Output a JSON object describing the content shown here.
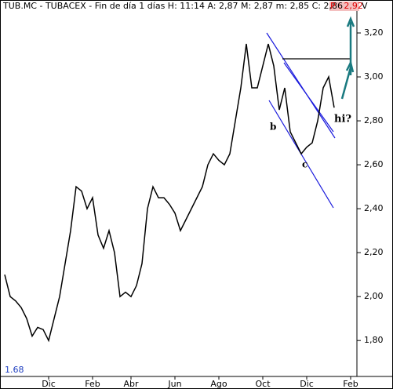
{
  "chart_data": {
    "type": "line",
    "title": "TUB.MC - TUBACEX - Fin de día 1 días H: 11:14 A: 2,87 M: 2,87 m: 2,85 C: 2,86",
    "title_highlight": "P : 2,92",
    "title_tail": "V",
    "corner_label": "1.68",
    "annotations": [
      "b",
      "c",
      "hi?"
    ],
    "categories": [
      null,
      null,
      null,
      null,
      null,
      null,
      null,
      null,
      "Dic",
      null,
      null,
      null,
      null,
      null,
      null,
      null,
      "Feb",
      null,
      null,
      null,
      null,
      null,
      null,
      "Abr",
      null,
      null,
      null,
      null,
      null,
      null,
      null,
      "Jun",
      null,
      null,
      null,
      null,
      null,
      null,
      null,
      "Ago",
      null,
      null,
      null,
      null,
      null,
      null,
      null,
      "Oct",
      null,
      null,
      null,
      null,
      null,
      null,
      null,
      "Dic",
      null,
      null,
      null,
      null,
      null,
      null,
      null,
      "Feb",
      null,
      null
    ],
    "series": [
      {
        "name": "TUB.MC",
        "color": "#000000",
        "values": [
          2.1,
          2.0,
          1.98,
          1.95,
          1.9,
          1.82,
          1.86,
          1.85,
          1.8,
          1.9,
          2.0,
          2.15,
          2.3,
          2.5,
          2.48,
          2.4,
          2.45,
          2.28,
          2.22,
          2.3,
          2.2,
          2.0,
          2.02,
          2.0,
          2.05,
          2.15,
          2.4,
          2.5,
          2.45,
          2.45,
          2.42,
          2.38,
          2.3,
          2.35,
          2.4,
          2.45,
          2.5,
          2.6,
          2.65,
          2.62,
          2.6,
          2.65,
          2.8,
          2.95,
          3.15,
          2.95,
          2.95,
          3.05,
          3.15,
          3.05,
          2.85,
          2.95,
          2.75,
          2.7,
          2.65,
          2.68,
          2.7,
          2.8,
          2.95,
          3.0,
          2.86,
          null,
          null,
          null,
          null,
          null
        ]
      }
    ],
    "ylim": [
      1.64,
      3.35
    ],
    "yticks": [
      {
        "value": 1.8,
        "label": "1,80"
      },
      {
        "value": 2.0,
        "label": "2,00"
      },
      {
        "value": 2.2,
        "label": "2,20"
      },
      {
        "value": 2.4,
        "label": "2,40"
      },
      {
        "value": 2.6,
        "label": "2,60"
      },
      {
        "value": 2.8,
        "label": "2,80"
      },
      {
        "value": 3.0,
        "label": "3,00"
      },
      {
        "value": 3.2,
        "label": "3,20"
      }
    ],
    "grid": false
  }
}
